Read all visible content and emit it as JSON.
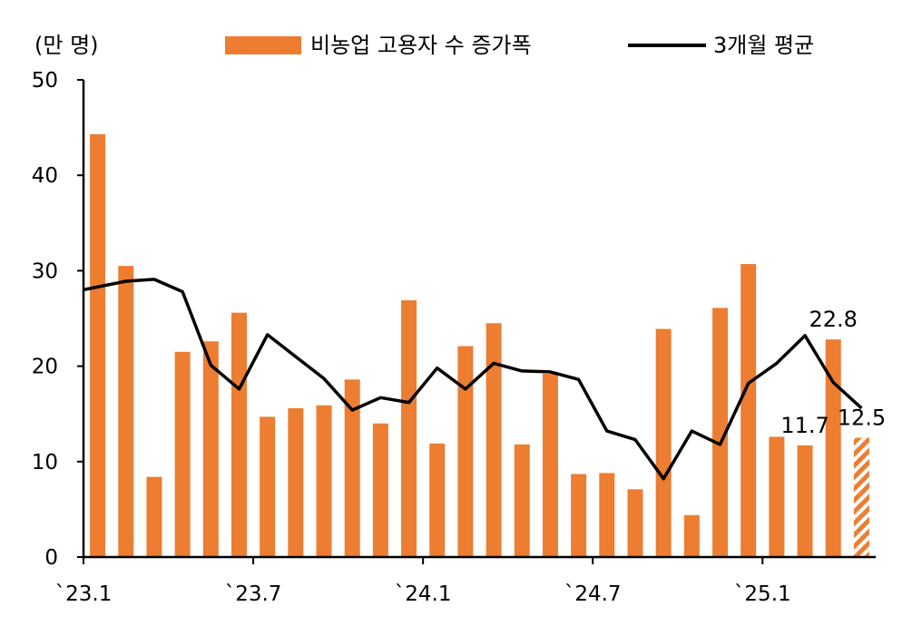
{
  "chart_data": {
    "type": "bar",
    "unit_label": "(만 명)",
    "legend": {
      "placement": "top",
      "bar_label": "비농업 고용자 수 증가폭",
      "line_label": "3개월 평균"
    },
    "ylim": [
      0,
      50
    ],
    "y_ticks": [
      "0",
      "10",
      "20",
      "30",
      "40",
      "50"
    ],
    "grid": false,
    "x_tick_labels": [
      {
        "index": 0,
        "label": "`23.1"
      },
      {
        "index": 6,
        "label": "`23.7"
      },
      {
        "index": 12,
        "label": "`24.1"
      },
      {
        "index": 18,
        "label": "`24.7"
      },
      {
        "index": 24,
        "label": "`25.1"
      }
    ],
    "categories": [
      "2023-01",
      "2023-02",
      "2023-03",
      "2023-04",
      "2023-05",
      "2023-06",
      "2023-07",
      "2023-08",
      "2023-09",
      "2023-10",
      "2023-11",
      "2023-12",
      "2024-01",
      "2024-02",
      "2024-03",
      "2024-04",
      "2024-05",
      "2024-06",
      "2024-07",
      "2024-08",
      "2024-09",
      "2024-10",
      "2024-11",
      "2024-12",
      "2025-01",
      "2025-02",
      "2025-03",
      "2025-04"
    ],
    "series": [
      {
        "name": "비농업 고용자 수 증가폭",
        "type": "bar",
        "color": "#ED7D31",
        "values": [
          44.3,
          30.5,
          8.4,
          21.5,
          22.6,
          25.6,
          14.7,
          15.6,
          15.9,
          18.6,
          14.0,
          26.9,
          11.9,
          22.1,
          24.5,
          11.8,
          19.2,
          8.7,
          8.8,
          7.1,
          23.9,
          4.4,
          26.1,
          30.7,
          12.6,
          11.7,
          22.8,
          12.5
        ]
      },
      {
        "name": "3개월 평균",
        "type": "line",
        "color": "#000000",
        "values": [
          28.0,
          28.9,
          29.1,
          27.8,
          20.1,
          17.6,
          23.3,
          21.0,
          18.7,
          15.4,
          16.7,
          16.2,
          19.8,
          17.6,
          20.3,
          19.5,
          19.4,
          18.6,
          13.2,
          12.3,
          8.2,
          13.2,
          11.8,
          18.2,
          20.3,
          23.2,
          18.3,
          15.6
        ]
      }
    ],
    "preliminary_index": 27,
    "annotations": [
      {
        "index": 25,
        "text": "11.7"
      },
      {
        "index": 26,
        "text": "22.8"
      },
      {
        "index": 27,
        "text": "12.5"
      }
    ]
  }
}
